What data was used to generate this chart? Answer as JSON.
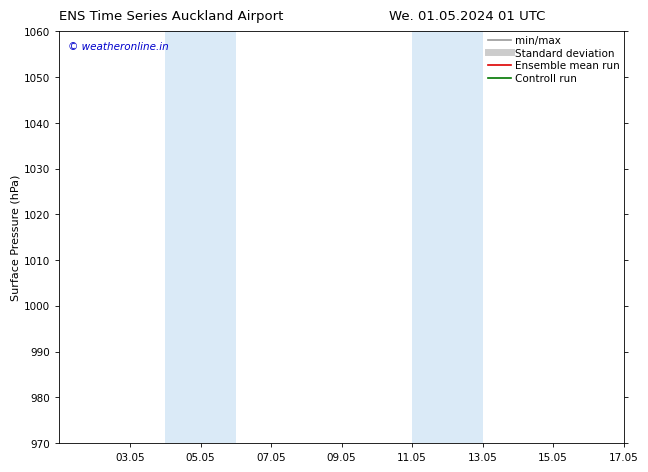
{
  "title_left": "ENS Time Series Auckland Airport",
  "title_right": "We. 01.05.2024 01 UTC",
  "ylabel": "Surface Pressure (hPa)",
  "ylim": [
    970,
    1060
  ],
  "yticks": [
    970,
    980,
    990,
    1000,
    1010,
    1020,
    1030,
    1040,
    1050,
    1060
  ],
  "xlim": [
    1.0,
    17.0
  ],
  "xtick_labels": [
    "03.05",
    "05.05",
    "07.05",
    "09.05",
    "11.05",
    "13.05",
    "15.05",
    "17.05"
  ],
  "xtick_positions": [
    3,
    5,
    7,
    9,
    11,
    13,
    15,
    17
  ],
  "shade_bands": [
    {
      "xmin": 4.0,
      "xmax": 6.0
    },
    {
      "xmin": 11.0,
      "xmax": 13.0
    }
  ],
  "shade_color": "#daeaf7",
  "background_color": "#ffffff",
  "watermark_text": "© weatheronline.in",
  "watermark_color": "#0000cc",
  "legend_entries": [
    {
      "label": "min/max",
      "color": "#999999",
      "lw": 1.2
    },
    {
      "label": "Standard deviation",
      "color": "#cccccc",
      "lw": 5
    },
    {
      "label": "Ensemble mean run",
      "color": "#dd0000",
      "lw": 1.2
    },
    {
      "label": "Controll run",
      "color": "#007700",
      "lw": 1.2
    }
  ],
  "title_fontsize": 9.5,
  "axis_label_fontsize": 8,
  "tick_fontsize": 7.5,
  "legend_fontsize": 7.5,
  "watermark_fontsize": 7.5
}
